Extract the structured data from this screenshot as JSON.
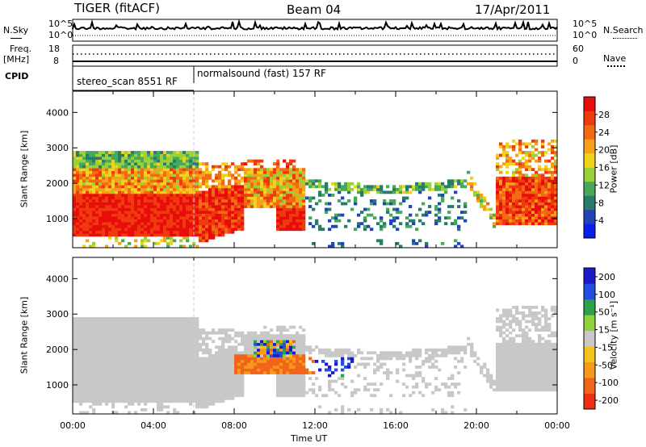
{
  "header": {
    "radar": "TIGER (fitACF)",
    "beam": "Beam 04",
    "date": "17/Apr/2011"
  },
  "status": {
    "left_nsky": "N.Sky",
    "right_nsearch": "N.Search",
    "nsky_ticks": [
      "10^5",
      "10^0"
    ],
    "nsearch_ticks": [
      "10^5",
      "10^0"
    ],
    "freq_label_top": "Freq.",
    "freq_label_unit": "[MHz]",
    "freq_ticks": [
      "18",
      "8"
    ],
    "nave_label": "Nave",
    "nave_ticks": [
      "60",
      "0"
    ],
    "cpid_label": "CPID",
    "cpid_segments": [
      {
        "label": "stereo_scan 8551 RF",
        "start_hour": 0,
        "end_hour": 6
      },
      {
        "label": "normalsound (fast) 157 RF",
        "start_hour": 6,
        "end_hour": 24
      }
    ]
  },
  "chart_data": [
    {
      "type": "heatmap",
      "ylabel": "Slant Range [km]",
      "ylim": [
        180,
        4600
      ],
      "yticks": [
        1000,
        2000,
        3000,
        4000
      ],
      "xlim": [
        0,
        24
      ],
      "colorbar": {
        "label": "Power [dB]",
        "ticks": [
          "4",
          "8",
          "12",
          "16",
          "20",
          "24",
          "28"
        ],
        "range": [
          0,
          30
        ],
        "colors": [
          "#0b1ef0",
          "#2142b8",
          "#2a7a6a",
          "#45a85a",
          "#9ad13a",
          "#f0d21a",
          "#f7a11a",
          "#f26a12",
          "#ee3a0e",
          "#e80d0a"
        ]
      }
    },
    {
      "type": "heatmap",
      "ylabel": "Slant Range [km]",
      "ylim": [
        180,
        4600
      ],
      "yticks": [
        1000,
        2000,
        3000,
        4000
      ],
      "xlim": [
        0,
        24
      ],
      "xticks": [
        "00:00",
        "04:00",
        "08:00",
        "12:00",
        "16:00",
        "20:00",
        "00:00"
      ],
      "xlabel": "Time UT",
      "colorbar": {
        "label": "Velocity [m s⁻¹]",
        "ticks": [
          "200",
          "100",
          "50",
          "15",
          "-15",
          "-50",
          "-100",
          "-200"
        ],
        "range": [
          -250,
          250
        ],
        "colors": [
          "#1a1acc",
          "#1f4ee0",
          "#2ca04a",
          "#8ed13a",
          "#c8c8c8",
          "#f5c21a",
          "#f59a1a",
          "#f2641a",
          "#ee2e10"
        ]
      }
    }
  ]
}
